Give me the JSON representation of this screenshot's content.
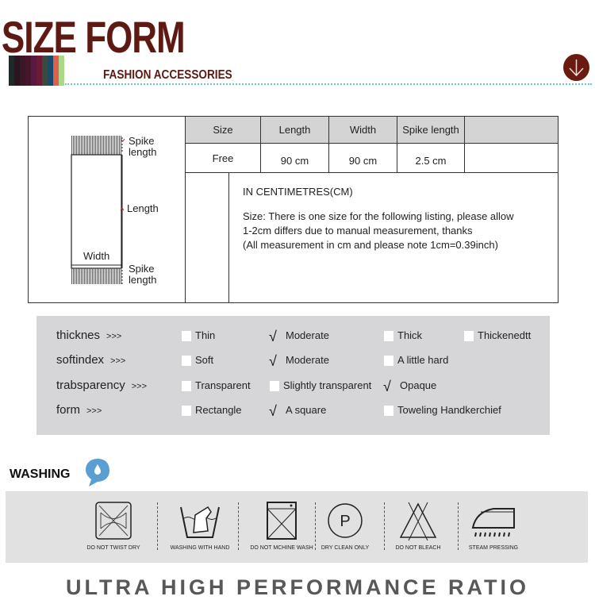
{
  "header": {
    "title": "SIZE FORM",
    "subtitle": "FASHION ACCESSORIES",
    "stripe_colors": [
      "#1b2b2a",
      "#2b1620",
      "#3b1626",
      "#46162b",
      "#561b42",
      "#6b1b36",
      "#3b4b3b",
      "#1b4b6b",
      "#e0604f",
      "#a8d888"
    ],
    "accent": "#5c1a12",
    "scroll_icon": "arrow-down-circle-icon"
  },
  "size_table": {
    "diagram_labels": {
      "spike_top": [
        "Spike",
        "length"
      ],
      "length": "Length",
      "width": "Width",
      "spike_bottom": [
        "Spike",
        "length"
      ]
    },
    "headers": [
      "Size",
      "Length",
      "Width",
      "Spike length",
      ""
    ],
    "row": [
      "Free",
      "90 cm",
      "90 cm",
      "2.5 cm",
      ""
    ],
    "notes": [
      "IN CENTIMETRES(CM)",
      "Size: There is one size for the following listing, please allow",
      "1-2cm differs due to manual measurement, thanks",
      "(All measurement in cm and please note 1cm=0.39inch)"
    ]
  },
  "attributes": [
    {
      "label": "thicknes",
      "arrow": ">>>",
      "options": [
        {
          "text": "Thin",
          "checked": false
        },
        {
          "text": "Moderate",
          "checked": true
        },
        {
          "text": "Thick",
          "checked": false
        },
        {
          "text": "Thickenedtt",
          "checked": false
        }
      ]
    },
    {
      "label": "softindex",
      "arrow": ">>>",
      "options": [
        {
          "text": "Soft",
          "checked": false
        },
        {
          "text": "Moderate",
          "checked": true
        },
        {
          "text": "A little hard",
          "checked": false
        }
      ]
    },
    {
      "label": "trabsparency",
      "arrow": ">>>",
      "options": [
        {
          "text": "Transparent",
          "checked": false
        },
        {
          "text": "Slightly transparent",
          "checked": false
        },
        {
          "text": "Opaque",
          "checked": true
        }
      ]
    },
    {
      "label": "form",
      "arrow": ">>>",
      "options": [
        {
          "text": "Rectangle",
          "checked": false
        },
        {
          "text": "A square",
          "checked": true
        },
        {
          "text": "Toweling Handkerchief",
          "checked": false
        }
      ]
    }
  ],
  "check_mark": "√",
  "washing": {
    "title": "WASHING",
    "icon": "water-drop-icon",
    "icon_color": "#5b9fd2",
    "items": [
      {
        "label": "DO NOT TWIST DRY",
        "icon": "no-wring-icon"
      },
      {
        "label": "WASHING WITH HAND",
        "icon": "hand-wash-icon"
      },
      {
        "label": "DO NOT MCHINE WASH",
        "icon": "no-machine-wash-icon"
      },
      {
        "label": "DRY CLEAN ONLY",
        "icon": "dry-clean-icon"
      },
      {
        "label": "DO NOT BLEACH",
        "icon": "no-bleach-icon"
      },
      {
        "label": "STEAM PRESSING",
        "icon": "steam-iron-icon"
      }
    ]
  },
  "footer": {
    "slogan": "ULTRA HIGH PERFORMANCE RATIO"
  }
}
